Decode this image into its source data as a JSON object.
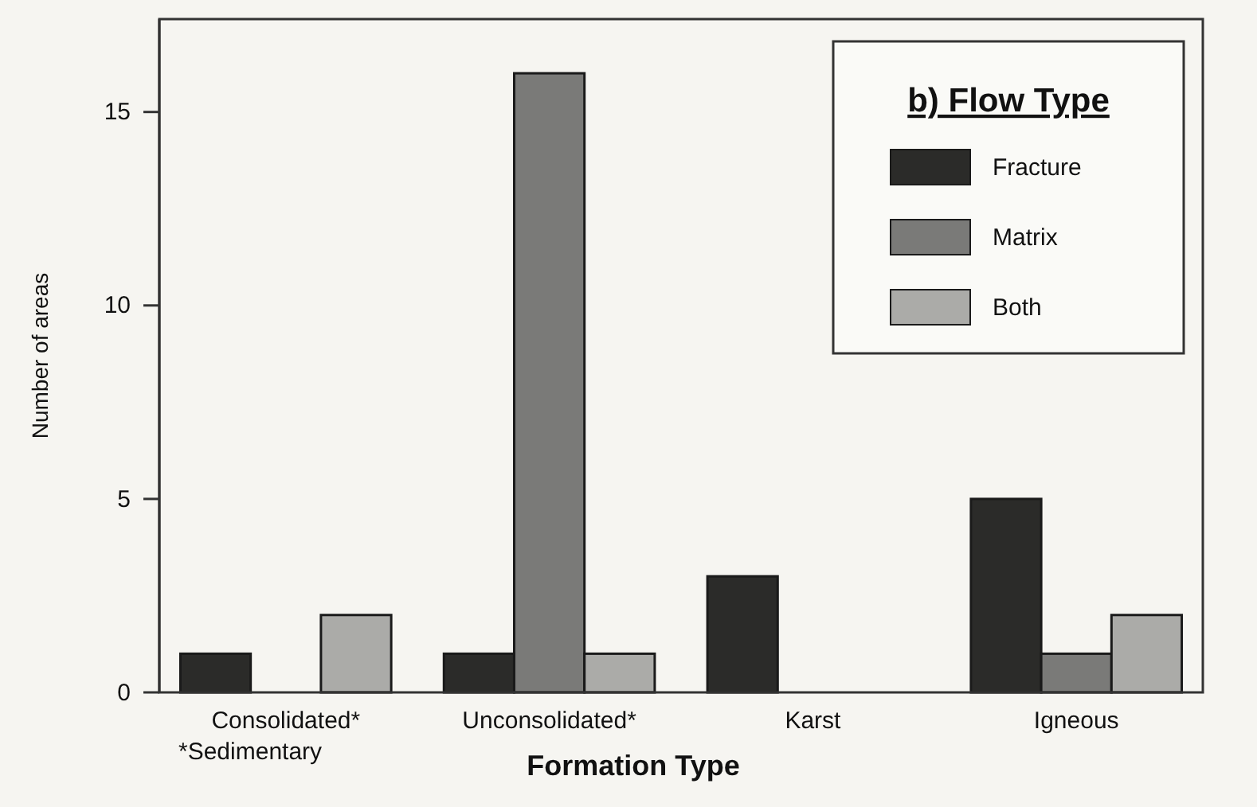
{
  "chart_data": {
    "type": "bar",
    "xlabel": "Formation Type",
    "ylabel": "Number of areas",
    "legend_title": "b)  Flow Type",
    "categories": [
      "Consolidated*",
      "Unconsolidated*",
      "Karst",
      "Igneous"
    ],
    "series": [
      {
        "name": "Fracture",
        "color": "#2b2b29",
        "values": [
          1,
          1,
          3,
          5
        ]
      },
      {
        "name": "Matrix",
        "color": "#7a7a78",
        "values": [
          0,
          16,
          0,
          1
        ]
      },
      {
        "name": "Both",
        "color": "#ababa8",
        "values": [
          2,
          1,
          0,
          2
        ]
      }
    ],
    "ylim": [
      0,
      17.4
    ],
    "yticks": [
      0,
      5,
      10,
      15
    ],
    "grid": false,
    "legend": "top right",
    "annotations": [
      "*Sedimentary"
    ]
  }
}
